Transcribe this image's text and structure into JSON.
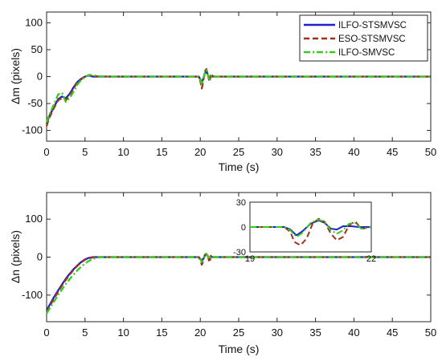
{
  "colors": {
    "ilfo_stsmvsc": "#1f1fcf",
    "eso_stsmvsc": "#a0301a",
    "ilfo_smvsc": "#33cc1a"
  },
  "legend": [
    "ILFO-STSMVSC",
    "ESO-STSMVSC",
    "ILFO-SMVSC"
  ],
  "chart_data": [
    {
      "type": "line",
      "xlabel": "Time (s)",
      "ylabel": "Δm (pixels)",
      "xlim": [
        0,
        50
      ],
      "ylim": [
        -120,
        120
      ],
      "xticks": [
        0,
        5,
        10,
        15,
        20,
        25,
        30,
        35,
        40,
        45,
        50
      ],
      "yticks": [
        -100,
        -50,
        0,
        50,
        100
      ],
      "grid": false,
      "legend_position": "top-right",
      "series": [
        {
          "name": "ILFO-STSMVSC",
          "style": "solid",
          "x": [
            0,
            0.3,
            1,
            1.5,
            2,
            2.5,
            3,
            3.5,
            4,
            4.5,
            5,
            5.5,
            6,
            8,
            19.8,
            20,
            20.2,
            20.4,
            20.6,
            20.8,
            21.0,
            21.2,
            21.4,
            21.6,
            50
          ],
          "y": [
            -88,
            -75,
            -55,
            -42,
            -37,
            -40,
            -32,
            -20,
            -10,
            -4,
            0,
            2,
            0,
            0,
            0,
            -5,
            -12,
            -3,
            6,
            10,
            3,
            -3,
            1,
            0,
            0
          ]
        },
        {
          "name": "ESO-STSMVSC",
          "style": "dashed",
          "x": [
            0,
            0.3,
            1,
            1.5,
            2,
            2.5,
            3,
            3.5,
            4,
            4.5,
            5,
            5.5,
            6,
            8,
            19.8,
            20,
            20.2,
            20.4,
            20.6,
            20.8,
            21.0,
            21.2,
            21.4,
            21.6,
            21.8,
            50
          ],
          "y": [
            -92,
            -78,
            -57,
            -44,
            -40,
            -44,
            -35,
            -22,
            -11,
            -5,
            0,
            3,
            1,
            0,
            0,
            -8,
            -22,
            -8,
            10,
            14,
            3,
            -10,
            6,
            1,
            0,
            0
          ]
        },
        {
          "name": "ILFO-SMVSC",
          "style": "dashdot",
          "x": [
            0,
            0.3,
            1,
            1.5,
            2,
            2.5,
            3,
            3.5,
            4,
            4.5,
            5,
            5.5,
            6,
            6.5,
            8,
            19.8,
            20,
            20.2,
            20.4,
            20.6,
            20.8,
            21.0,
            21.2,
            21.4,
            21.6,
            50
          ],
          "y": [
            -85,
            -72,
            -50,
            -33,
            -30,
            -47,
            -40,
            -28,
            -15,
            -6,
            -1,
            3,
            3,
            1,
            0,
            0,
            -6,
            -15,
            -4,
            8,
            12,
            2,
            -5,
            2,
            0,
            0
          ]
        }
      ]
    },
    {
      "type": "line",
      "xlabel": "Time (s)",
      "ylabel": "Δn (pixels)",
      "xlim": [
        0,
        50
      ],
      "ylim": [
        -170,
        170
      ],
      "xticks": [
        0,
        5,
        10,
        15,
        20,
        25,
        30,
        35,
        40,
        45,
        50
      ],
      "yticks": [
        -100,
        0,
        100
      ],
      "grid": false,
      "series": [
        {
          "name": "ILFO-STSMVSC",
          "style": "solid",
          "x": [
            0,
            0.5,
            1,
            1.5,
            2,
            2.5,
            3,
            3.5,
            4,
            4.5,
            5,
            5.5,
            6,
            7,
            19.8,
            20,
            20.2,
            20.4,
            20.6,
            20.8,
            21.0,
            21.2,
            21.4,
            21.6,
            50
          ],
          "y": [
            -140,
            -122,
            -104,
            -88,
            -72,
            -57,
            -44,
            -32,
            -22,
            -13,
            -6,
            -2,
            0,
            0,
            0,
            -4,
            -10,
            -4,
            4,
            8,
            2,
            -3,
            1,
            0,
            0
          ]
        },
        {
          "name": "ESO-STSMVSC",
          "style": "dashed",
          "x": [
            0,
            0.5,
            1,
            1.5,
            2,
            2.5,
            3,
            3.5,
            4,
            4.5,
            5,
            5.5,
            6,
            7,
            19.8,
            20,
            20.2,
            20.4,
            20.6,
            20.8,
            21.0,
            21.2,
            21.4,
            21.6,
            21.8,
            50
          ],
          "y": [
            -145,
            -126,
            -108,
            -91,
            -75,
            -60,
            -46,
            -34,
            -23,
            -14,
            -7,
            -3,
            -1,
            0,
            0,
            -8,
            -20,
            -10,
            6,
            10,
            2,
            -14,
            6,
            2,
            0,
            0
          ]
        },
        {
          "name": "ILFO-SMVSC",
          "style": "dashdot",
          "x": [
            0,
            0.5,
            1,
            1.5,
            2,
            2.5,
            3,
            3.5,
            4,
            4.5,
            5,
            5.5,
            6,
            6.5,
            7,
            8,
            19.8,
            20,
            20.2,
            20.4,
            20.6,
            20.8,
            21.0,
            21.2,
            21.4,
            21.6,
            50
          ],
          "y": [
            -148,
            -132,
            -116,
            -100,
            -85,
            -71,
            -58,
            -46,
            -35,
            -25,
            -17,
            -10,
            -5,
            -2,
            0,
            0,
            0,
            -5,
            -13,
            -5,
            5,
            9,
            2,
            -6,
            2,
            0,
            0
          ]
        }
      ],
      "inset": {
        "xlim": [
          19,
          22
        ],
        "ylim": [
          -30,
          30
        ],
        "xticks": [
          19,
          22
        ],
        "yticks": [
          -30,
          0,
          30
        ],
        "series": [
          {
            "name": "ILFO-STSMVSC",
            "style": "solid",
            "x": [
              19,
              19.85,
              20.0,
              20.15,
              20.3,
              20.5,
              20.7,
              20.85,
              21.0,
              21.15,
              21.3,
              21.5,
              21.7,
              21.85,
              22
            ],
            "y": [
              0,
              0,
              -3,
              -10,
              -5,
              4,
              8,
              5,
              -2,
              -3,
              1,
              1,
              0,
              0,
              0
            ]
          },
          {
            "name": "ESO-STSMVSC",
            "style": "dashed",
            "x": [
              19,
              19.85,
              20.0,
              20.1,
              20.25,
              20.4,
              20.55,
              20.7,
              20.85,
              21.0,
              21.15,
              21.3,
              21.45,
              21.6,
              21.75,
              21.9,
              22
            ],
            "y": [
              0,
              0,
              -6,
              -18,
              -22,
              -14,
              4,
              10,
              6,
              -8,
              -16,
              -12,
              2,
              7,
              -2,
              -1,
              0
            ]
          },
          {
            "name": "ILFO-SMVSC",
            "style": "dashdot",
            "x": [
              19,
              19.85,
              20.0,
              20.15,
              20.3,
              20.5,
              20.7,
              20.85,
              21.0,
              21.15,
              21.3,
              21.45,
              21.6,
              21.75,
              21.9,
              22
            ],
            "y": [
              0,
              0,
              -4,
              -12,
              -7,
              5,
              9,
              6,
              -4,
              -8,
              -4,
              4,
              5,
              -2,
              -1,
              0
            ]
          }
        ]
      }
    }
  ]
}
